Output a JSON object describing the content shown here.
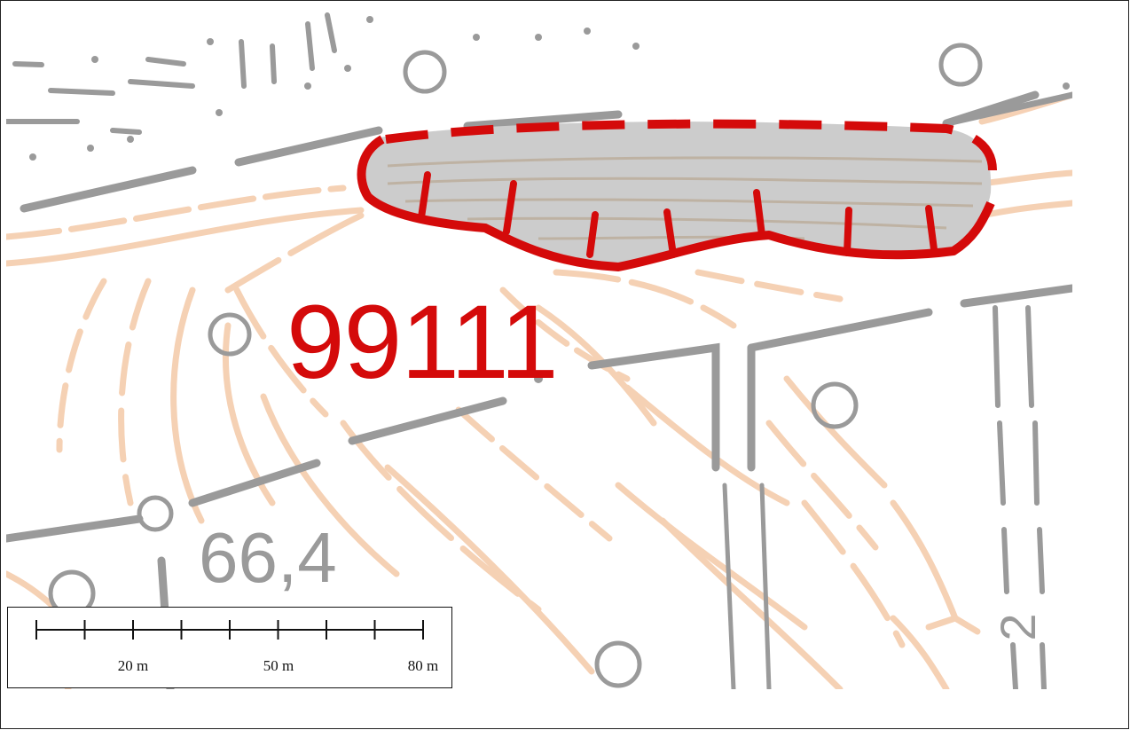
{
  "map": {
    "site_label": "99111",
    "height_label": "66,4",
    "contour_label": "2",
    "colors": {
      "site_outline": "#d40a0a",
      "site_fill": "#cccccc",
      "contours": "#f4c9a8",
      "features": "#999999",
      "label_grey": "#9a9a9a"
    }
  },
  "scalebar": {
    "ticks": 9,
    "labels": [
      "20 m",
      "50 m",
      "80 m"
    ]
  }
}
